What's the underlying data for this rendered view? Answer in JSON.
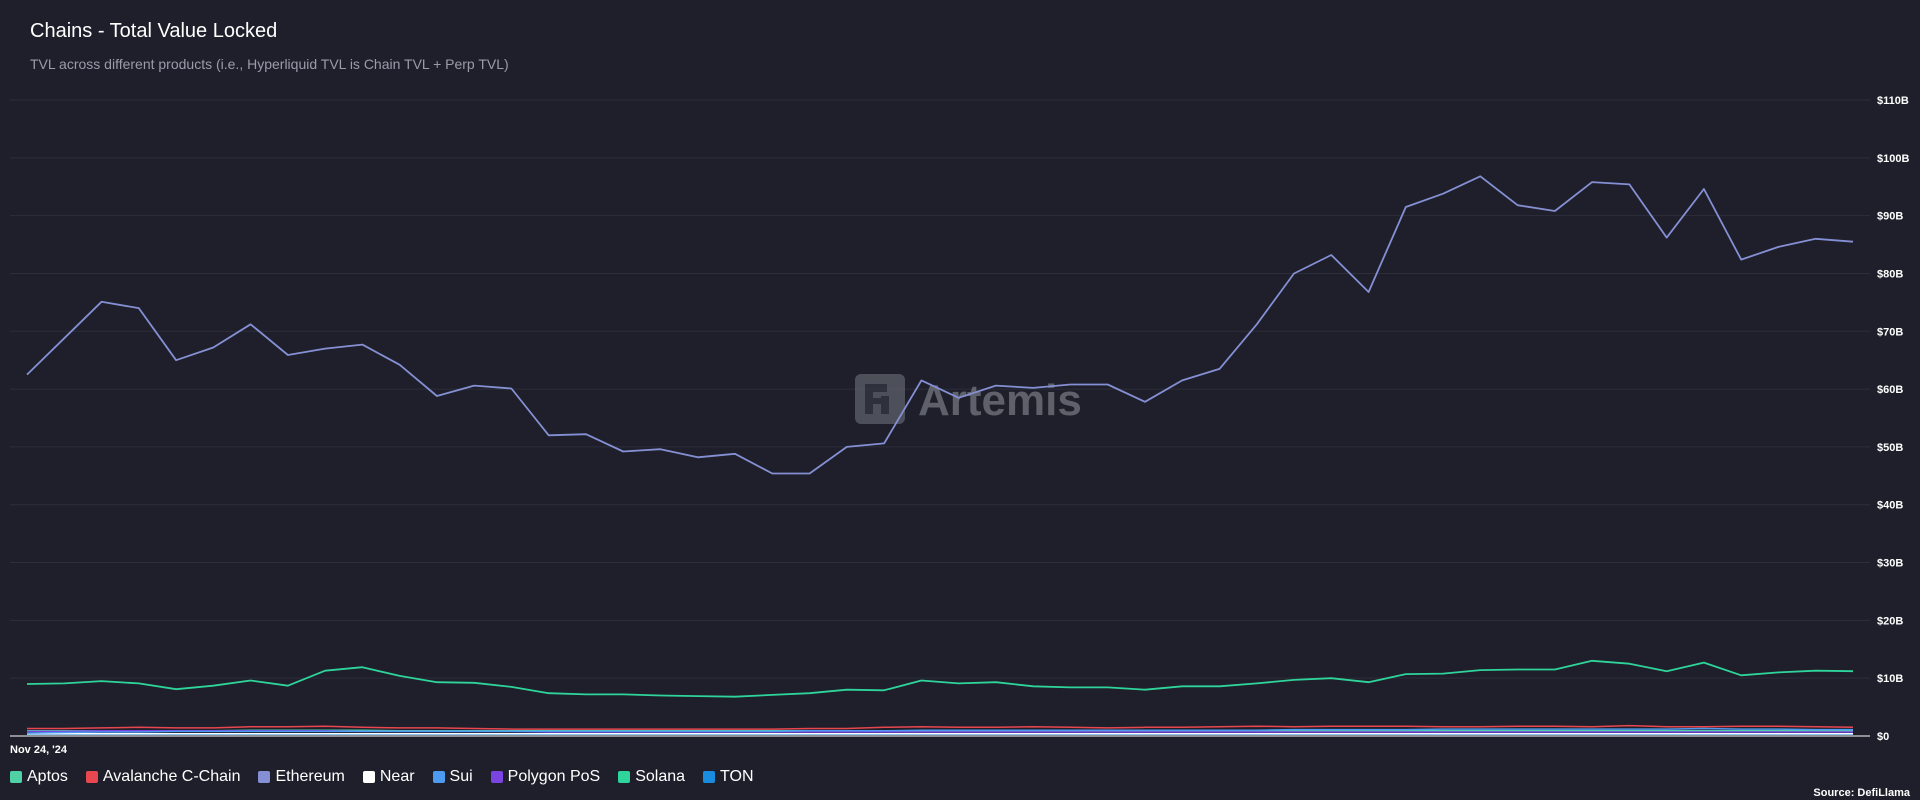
{
  "header": {
    "title": "Chains - Total Value Locked",
    "subtitle": "TVL across different products (i.e., Hyperliquid TVL is Chain TVL + Perp TVL)"
  },
  "watermark": {
    "text": "Artemis"
  },
  "footer": {
    "source": "Source: DefiLlama"
  },
  "chart_data": {
    "type": "line",
    "title": "Chains - Total Value Locked",
    "subtitle": "TVL across different products (i.e., Hyperliquid TVL is Chain TVL + Perp TVL)",
    "xlabel": "",
    "ylabel": "",
    "x_tick_labels": [
      "Nov 24, '24"
    ],
    "y_tick_labels": [
      "$0",
      "$10B",
      "$20B",
      "$30B",
      "$40B",
      "$50B",
      "$60B",
      "$70B",
      "$80B",
      "$90B",
      "$100B",
      "$110B"
    ],
    "ylim": [
      0,
      110
    ],
    "y_unit": "B USD",
    "grid": true,
    "legend_position": "bottom-left",
    "series": [
      {
        "name": "Aptos",
        "color": "#4fd1a5",
        "values": [
          0.9,
          0.9,
          0.9,
          0.9,
          0.9,
          0.9,
          1,
          1,
          1,
          1,
          0.9,
          0.9,
          0.9,
          0.9,
          0.9,
          0.9,
          0.9,
          0.9,
          0.9,
          0.9,
          0.9,
          0.9,
          0.9,
          0.9,
          0.9,
          0.9,
          0.9,
          0.9,
          0.9,
          0.9,
          0.9,
          0.9,
          0.9,
          0.9,
          0.9,
          0.9,
          0.9,
          0.9,
          0.9,
          0.9,
          0.9,
          0.9,
          0.9,
          0.9,
          0.9,
          0.9,
          0.9,
          0.9,
          0.9,
          0.9
        ]
      },
      {
        "name": "Avalanche C-Chain",
        "color": "#e8474f",
        "values": [
          1.3,
          1.3,
          1.4,
          1.5,
          1.4,
          1.4,
          1.6,
          1.6,
          1.7,
          1.5,
          1.4,
          1.4,
          1.3,
          1.2,
          1.2,
          1.2,
          1.2,
          1.2,
          1.2,
          1.2,
          1.2,
          1.3,
          1.3,
          1.5,
          1.6,
          1.5,
          1.5,
          1.6,
          1.5,
          1.4,
          1.5,
          1.5,
          1.6,
          1.7,
          1.6,
          1.7,
          1.7,
          1.7,
          1.6,
          1.6,
          1.7,
          1.7,
          1.6,
          1.8,
          1.6,
          1.6,
          1.7,
          1.7,
          1.6,
          1.5
        ]
      },
      {
        "name": "Ethereum",
        "color": "#8590d4",
        "values": [
          62.5,
          68.8,
          75.1,
          74,
          65,
          67.2,
          71.2,
          65.9,
          67,
          67.7,
          64.2,
          58.8,
          60.6,
          60.1,
          52,
          52.2,
          49.2,
          49.6,
          48.2,
          48.8,
          45.4,
          45.4,
          50,
          50.6,
          61.5,
          58.5,
          60.6,
          60.2,
          60.8,
          60.8,
          57.8,
          61.5,
          63.5,
          71.2,
          80,
          83.2,
          76.8,
          91.5,
          93.8,
          96.8,
          91.8,
          90.8,
          95.8,
          95.4,
          86.2,
          94.6,
          82.4,
          84.6,
          86,
          85.5
        ]
      },
      {
        "name": "Near",
        "color": "#ffffff",
        "values": [
          0.4,
          0.4,
          0.4,
          0.4,
          0.4,
          0.4,
          0.4,
          0.4,
          0.4,
          0.4,
          0.4,
          0.4,
          0.4,
          0.4,
          0.4,
          0.4,
          0.4,
          0.4,
          0.4,
          0.4,
          0.4,
          0.4,
          0.4,
          0.4,
          0.4,
          0.4,
          0.4,
          0.4,
          0.4,
          0.4,
          0.4,
          0.4,
          0.4,
          0.4,
          0.4,
          0.4,
          0.4,
          0.4,
          0.4,
          0.4,
          0.4,
          0.4,
          0.4,
          0.4,
          0.4,
          0.4,
          0.4,
          0.4,
          0.4,
          0.4
        ]
      },
      {
        "name": "Sui",
        "color": "#4d9bf0",
        "values": [
          0.5,
          0.6,
          0.7,
          0.7,
          0.8,
          0.8,
          0.8,
          0.8,
          0.8,
          0.8,
          0.8,
          0.8,
          0.8,
          0.8,
          0.8,
          0.8,
          0.8,
          0.8,
          0.8,
          0.8,
          0.8,
          0.9,
          0.9,
          0.9,
          1,
          1,
          1,
          1,
          1,
          1,
          1,
          1,
          1,
          1,
          1.1,
          1.1,
          1.1,
          1.1,
          1.2,
          1.2,
          1.2,
          1.2,
          1.2,
          1.2,
          1.2,
          1.3,
          1.2,
          1.2,
          1.1,
          1.1
        ]
      },
      {
        "name": "Polygon PoS",
        "color": "#7b44e0",
        "values": [
          0.8,
          0.8,
          0.9,
          0.9,
          0.9,
          0.9,
          0.9,
          0.9,
          0.9,
          0.8,
          0.8,
          0.8,
          0.8,
          0.8,
          0.7,
          0.7,
          0.7,
          0.7,
          0.7,
          0.7,
          0.7,
          0.7,
          0.7,
          0.7,
          0.7,
          0.7,
          0.7,
          0.7,
          0.7,
          0.7,
          0.7,
          0.7,
          0.7,
          0.7,
          0.7,
          0.7,
          0.7,
          0.7,
          0.7,
          0.7,
          0.7,
          0.7,
          0.7,
          0.7,
          0.7,
          0.7,
          0.7,
          0.7,
          0.7,
          0.7
        ]
      },
      {
        "name": "Solana",
        "color": "#2fd49a",
        "values": [
          9,
          9.1,
          9.5,
          9.1,
          8.1,
          8.7,
          9.6,
          8.7,
          11.3,
          11.9,
          10.4,
          9.3,
          9.2,
          8.5,
          7.4,
          7.2,
          7.2,
          7,
          6.9,
          6.8,
          7.1,
          7.4,
          8,
          7.9,
          9.6,
          9.1,
          9.3,
          8.6,
          8.4,
          8.4,
          8,
          8.6,
          8.6,
          9.1,
          9.7,
          10,
          9.3,
          10.7,
          10.8,
          11.4,
          11.5,
          11.5,
          13,
          12.5,
          11.2,
          12.7,
          10.5,
          11,
          11.3,
          11.2
        ]
      },
      {
        "name": "TON",
        "color": "#1a8ce0",
        "values": [
          0.3,
          0.3,
          0.3,
          0.3,
          0.3,
          0.3,
          0.3,
          0.3,
          0.3,
          0.3,
          0.3,
          0.3,
          0.3,
          0.3,
          0.3,
          0.3,
          0.3,
          0.3,
          0.3,
          0.3,
          0.3,
          0.3,
          0.3,
          0.3,
          0.3,
          0.3,
          0.3,
          0.3,
          0.3,
          0.3,
          0.3,
          0.3,
          0.3,
          0.3,
          0.3,
          0.3,
          0.3,
          0.3,
          0.3,
          0.3,
          0.3,
          0.3,
          0.3,
          0.3,
          0.3,
          0.3,
          0.3,
          0.3,
          0.3,
          0.3
        ]
      }
    ]
  }
}
